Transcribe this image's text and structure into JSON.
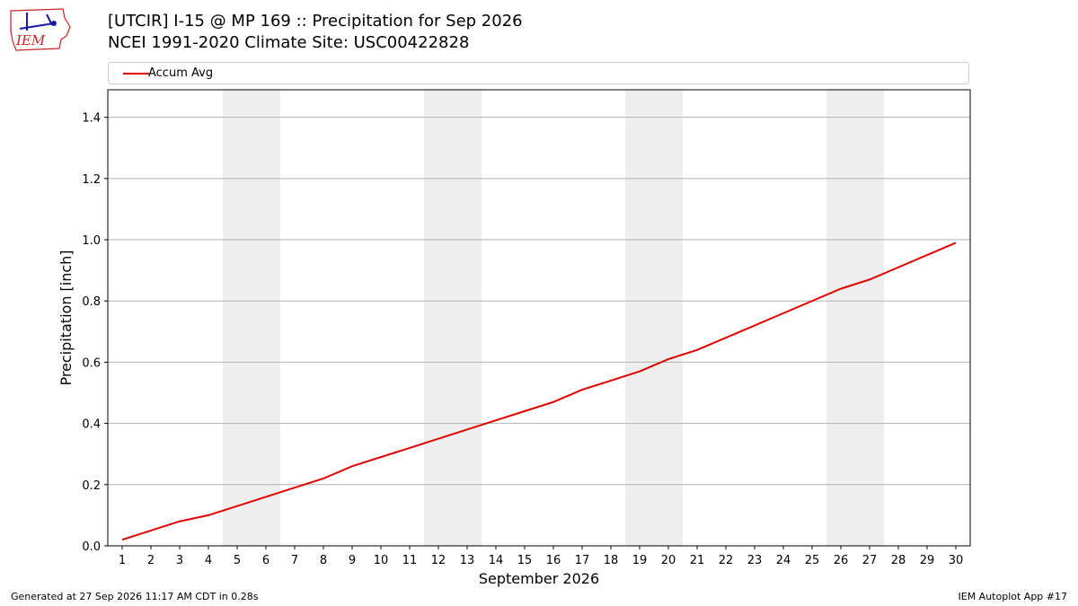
{
  "header": {
    "title_line1": "[UTCIR] I-15 @ MP 169  :: Precipitation for Sep 2026",
    "title_line2": "NCEI 1991-2020 Climate Site: USC00422828",
    "logo_text": "IEM"
  },
  "footer": {
    "generated": "Generated at 27 Sep 2026 11:17 AM CDT in 0.28s",
    "app": "IEM Autoplot App #17"
  },
  "colors": {
    "series": "#e00000",
    "weekend_shade": "#eeeeee",
    "grid": "#b0b0b0",
    "logo_blue": "#1a1aa6",
    "logo_red": "#cc2222"
  },
  "chart_data": {
    "type": "line",
    "xlabel": "September 2026",
    "ylabel": "Precipitation [inch]",
    "xlim": [
      0.5,
      30.5
    ],
    "ylim": [
      0,
      1.49
    ],
    "x": [
      1,
      2,
      3,
      4,
      5,
      6,
      7,
      8,
      9,
      10,
      11,
      12,
      13,
      14,
      15,
      16,
      17,
      18,
      19,
      20,
      21,
      22,
      23,
      24,
      25,
      26,
      27,
      28,
      29,
      30
    ],
    "xticks": [
      "1",
      "2",
      "3",
      "4",
      "5",
      "6",
      "7",
      "8",
      "9",
      "10",
      "11",
      "12",
      "13",
      "14",
      "15",
      "16",
      "17",
      "18",
      "19",
      "20",
      "21",
      "22",
      "23",
      "24",
      "25",
      "26",
      "27",
      "28",
      "29",
      "30"
    ],
    "yticks": [
      0.0,
      0.2,
      0.4,
      0.6,
      0.8,
      1.0,
      1.2,
      1.4
    ],
    "ytick_labels": [
      "0.0",
      "0.2",
      "0.4",
      "0.6",
      "0.8",
      "1.0",
      "1.2",
      "1.4"
    ],
    "weekend_days": [
      [
        5,
        6
      ],
      [
        12,
        13
      ],
      [
        19,
        20
      ],
      [
        26,
        27
      ]
    ],
    "grid": "horizontal",
    "legend_position": "top",
    "series": [
      {
        "name": "Accum Avg",
        "values": [
          0.02,
          0.05,
          0.08,
          0.1,
          0.13,
          0.16,
          0.19,
          0.22,
          0.26,
          0.29,
          0.32,
          0.35,
          0.38,
          0.41,
          0.44,
          0.47,
          0.51,
          0.54,
          0.57,
          0.61,
          0.64,
          0.68,
          0.72,
          0.76,
          0.8,
          0.84,
          0.87,
          0.91,
          0.95,
          0.99
        ]
      }
    ]
  }
}
